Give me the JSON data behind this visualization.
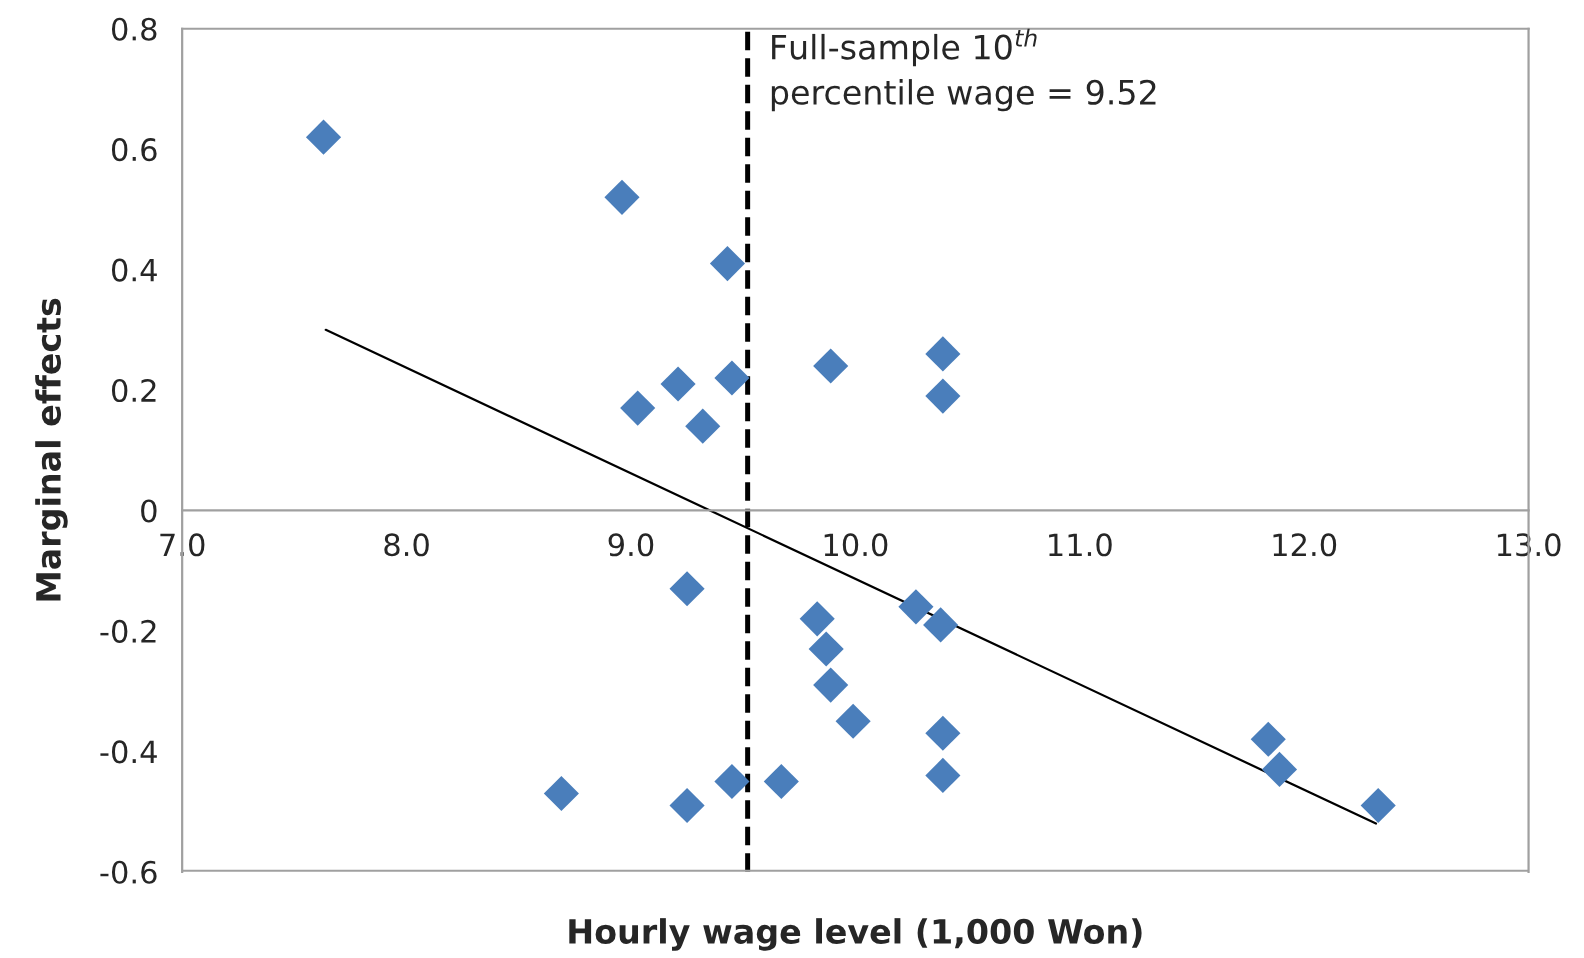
{
  "chart_data": {
    "type": "scatter",
    "xlabel": "Hourly wage level (1,000 Won)",
    "ylabel": "Marginal effects",
    "xlim": [
      7.0,
      13.0
    ],
    "xticks": [
      {
        "value": 7,
        "label": "7.0"
      },
      {
        "value": 8,
        "label": "8.0"
      },
      {
        "value": 9,
        "label": "9.0"
      },
      {
        "value": 10,
        "label": "10.0"
      },
      {
        "value": 11,
        "label": "11.0"
      },
      {
        "value": 12,
        "label": "12.0"
      },
      {
        "value": 13,
        "label": "13.0"
      }
    ],
    "ylim": [
      -0.6,
      0.8
    ],
    "yticks": [
      -0.6,
      -0.4,
      -0.2,
      0,
      0.2,
      0.4,
      0.6,
      0.8
    ],
    "grid": false,
    "legend": false,
    "marker": "diamond",
    "series": [
      {
        "color": "#4a7ebb",
        "x": [
          7.63,
          8.96,
          9.43,
          9.21,
          9.45,
          9.03,
          9.32,
          9.89,
          10.39,
          10.39,
          9.25,
          10.27,
          10.38,
          9.83,
          9.87,
          9.89,
          9.99,
          10.39,
          10.39,
          8.69,
          9.25,
          9.45,
          9.67,
          11.84,
          11.89,
          12.33
        ],
        "values": [
          0.62,
          0.52,
          0.41,
          0.21,
          0.22,
          0.17,
          0.14,
          0.24,
          0.26,
          0.19,
          -0.13,
          -0.16,
          -0.19,
          -0.18,
          -0.23,
          -0.29,
          -0.35,
          -0.37,
          -0.44,
          -0.47,
          -0.49,
          -0.45,
          -0.45,
          -0.38,
          -0.43,
          -0.49
        ]
      },
      {
        "type": "line",
        "color": "#000000",
        "marker": "none",
        "x": [
          7.64,
          12.32
        ],
        "values": [
          0.3,
          -0.52
        ]
      }
    ],
    "ref_lines": [
      {
        "axis": "x",
        "value": 9.52,
        "label": "Full-sample 10$^{th}$\npercentile wage = 9.52",
        "color": "#000000",
        "line_style": "dashed"
      }
    ]
  }
}
